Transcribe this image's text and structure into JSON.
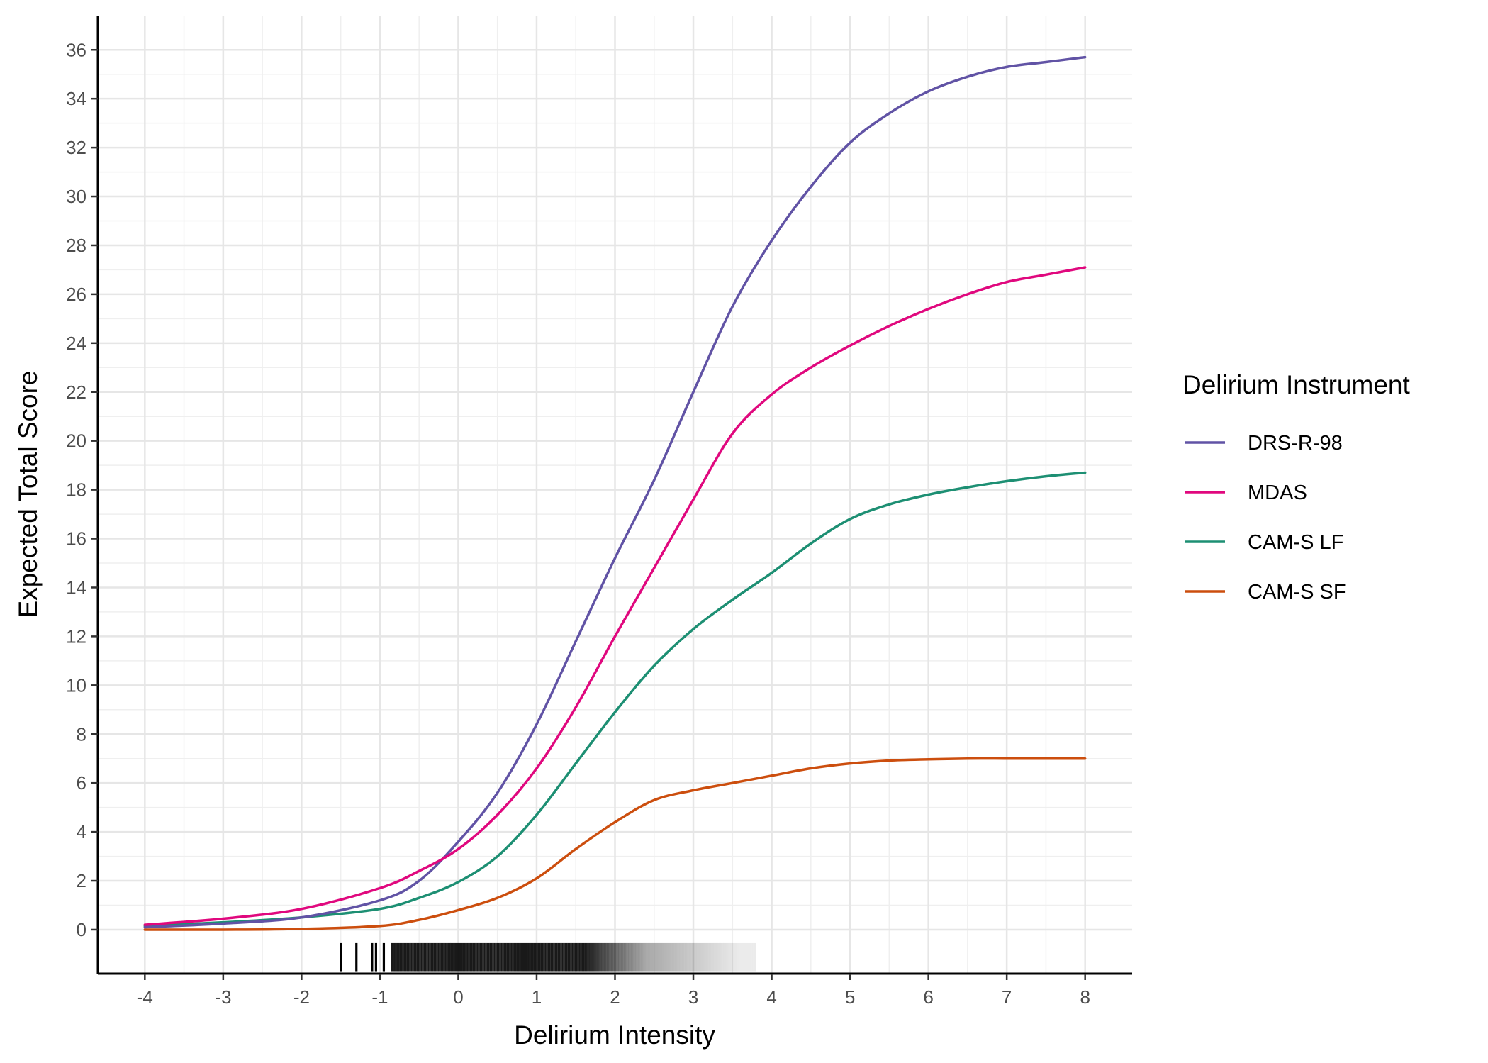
{
  "chart_data": {
    "type": "line",
    "xlabel": "Delirium Intensity",
    "ylabel": "Expected Total Score",
    "xlim": [
      -4.6,
      8.6
    ],
    "ylim": [
      -1.8,
      37.4
    ],
    "x_ticks": [
      -4,
      -3,
      -2,
      -1,
      0,
      1,
      2,
      3,
      4,
      5,
      6,
      7,
      8
    ],
    "y_ticks": [
      0,
      2,
      4,
      6,
      8,
      10,
      12,
      14,
      16,
      18,
      20,
      22,
      24,
      26,
      28,
      30,
      32,
      34,
      36
    ],
    "grid": true,
    "legend": {
      "title": "Delirium Instrument",
      "position": "right"
    },
    "series": [
      {
        "name": "DRS-R-98",
        "color": "#6153a5",
        "x": [
          -4,
          -3,
          -2,
          -1,
          -0.5,
          0,
          0.5,
          1,
          1.5,
          2,
          2.5,
          3,
          3.5,
          4,
          4.5,
          5,
          5.5,
          6,
          6.5,
          7,
          7.5,
          8
        ],
        "y": [
          0.1,
          0.25,
          0.5,
          1.2,
          2.0,
          3.6,
          5.6,
          8.4,
          11.8,
          15.2,
          18.4,
          22.0,
          25.5,
          28.2,
          30.4,
          32.2,
          33.4,
          34.3,
          34.9,
          35.3,
          35.5,
          35.7
        ]
      },
      {
        "name": "MDAS",
        "color": "#e0087e",
        "x": [
          -4,
          -3,
          -2,
          -1,
          -0.5,
          0,
          0.5,
          1,
          1.5,
          2,
          2.5,
          3,
          3.5,
          4,
          4.5,
          5,
          5.5,
          6,
          6.5,
          7,
          7.5,
          8
        ],
        "y": [
          0.2,
          0.45,
          0.85,
          1.7,
          2.4,
          3.3,
          4.7,
          6.6,
          9.1,
          12.0,
          14.8,
          17.6,
          20.3,
          21.9,
          23.0,
          23.9,
          24.7,
          25.4,
          26.0,
          26.5,
          26.8,
          27.1
        ]
      },
      {
        "name": "CAM-S LF",
        "color": "#1d8f73",
        "x": [
          -4,
          -3,
          -2,
          -1,
          -0.5,
          0,
          0.5,
          1,
          1.5,
          2,
          2.5,
          3,
          3.5,
          4,
          4.5,
          5,
          5.5,
          6,
          6.5,
          7,
          7.5,
          8
        ],
        "y": [
          0.15,
          0.3,
          0.5,
          0.85,
          1.3,
          1.95,
          3.0,
          4.7,
          6.8,
          8.9,
          10.8,
          12.3,
          13.5,
          14.6,
          15.8,
          16.8,
          17.4,
          17.8,
          18.1,
          18.35,
          18.55,
          18.7
        ]
      },
      {
        "name": "CAM-S SF",
        "color": "#cc4e0e",
        "x": [
          -4,
          -3,
          -2,
          -1,
          -0.5,
          0,
          0.5,
          1,
          1.5,
          2,
          2.5,
          3,
          3.5,
          4,
          4.5,
          5,
          5.5,
          6,
          6.5,
          7,
          7.5,
          8
        ],
        "y": [
          0.0,
          0.0,
          0.03,
          0.15,
          0.4,
          0.8,
          1.3,
          2.1,
          3.3,
          4.4,
          5.3,
          5.7,
          6.0,
          6.3,
          6.6,
          6.8,
          6.92,
          6.97,
          7.0,
          7.0,
          7.0,
          7.0
        ]
      }
    ]
  }
}
